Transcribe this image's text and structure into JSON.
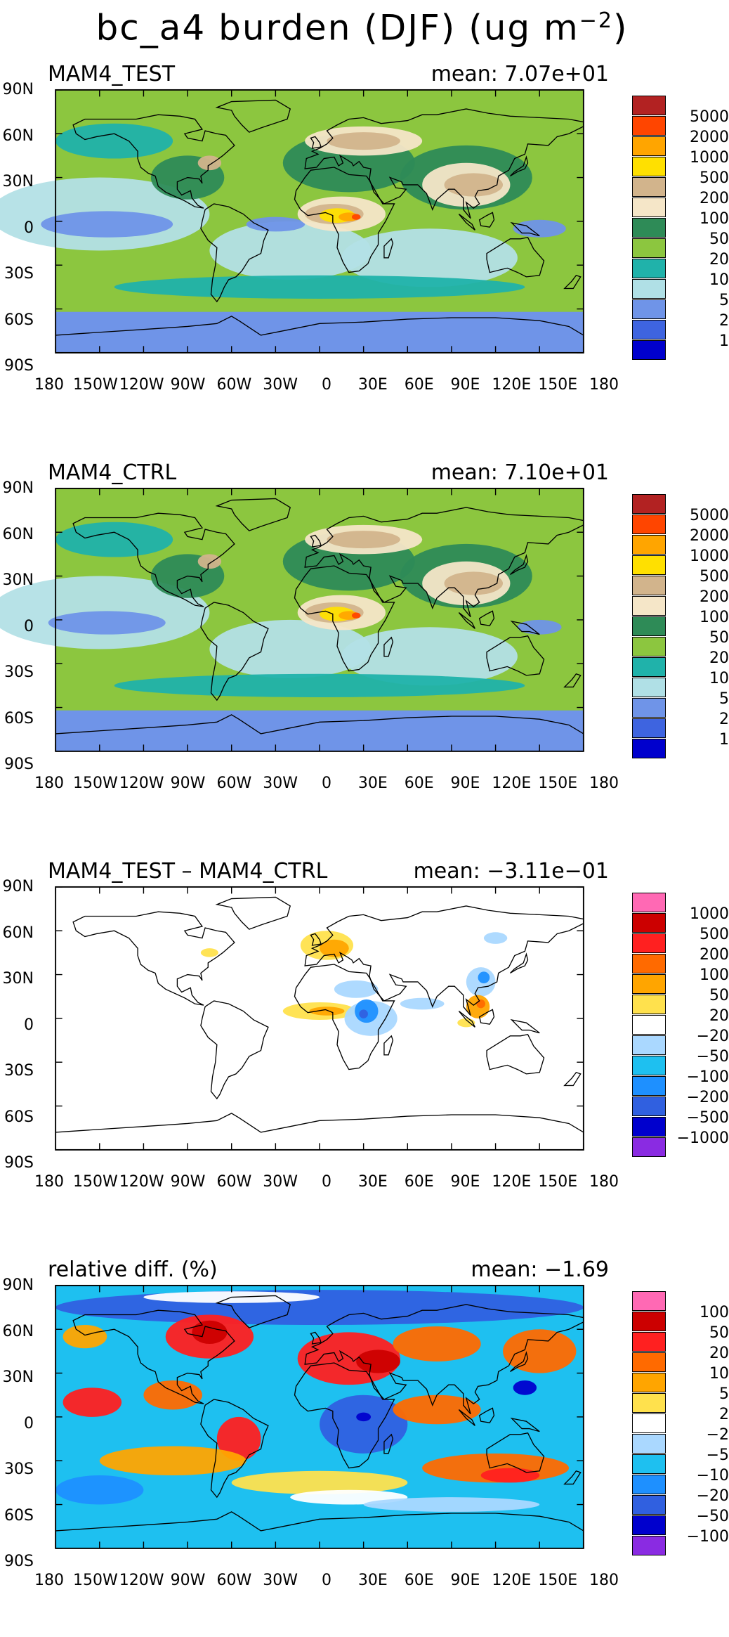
{
  "title": "bc_a4 burden (DJF) (ug m",
  "title_exponent": "−2",
  "title_close": ")",
  "x_labels": [
    "180",
    "150W",
    "120W",
    "90W",
    "60W",
    "30W",
    "0",
    "30E",
    "60E",
    "90E",
    "120E",
    "150E",
    "180"
  ],
  "y_labels": [
    "90N",
    "60N",
    "30N",
    "0",
    "30S",
    "60S",
    "90S"
  ],
  "panels": [
    {
      "id": "test",
      "title": "MAM4_TEST",
      "mean": "mean: 7.07e+01",
      "base_color": "#8cc63f",
      "ocean_color": "#b3e0e6",
      "land_color": "#8cc63f",
      "polar_color": "#6f94e8",
      "legend": {
        "colors": [
          "#b22222",
          "#ff4500",
          "#ffa500",
          "#ffe000",
          "#d2b48c",
          "#f5e6c8",
          "#2e8b57",
          "#8cc63f",
          "#20b2aa",
          "#b0e0e6",
          "#6f94e8",
          "#3e64e0",
          "#0000cd"
        ],
        "labels": [
          "5000",
          "2000",
          "1000",
          "500",
          "200",
          "100",
          "50",
          "20",
          "10",
          "5",
          "2",
          "1"
        ]
      }
    },
    {
      "id": "ctrl",
      "title": "MAM4_CTRL",
      "mean": "mean: 7.10e+01",
      "base_color": "#8cc63f",
      "ocean_color": "#b3e0e6",
      "land_color": "#8cc63f",
      "polar_color": "#6f94e8",
      "legend": {
        "colors": [
          "#b22222",
          "#ff4500",
          "#ffa500",
          "#ffe000",
          "#d2b48c",
          "#f5e6c8",
          "#2e8b57",
          "#8cc63f",
          "#20b2aa",
          "#b0e0e6",
          "#6f94e8",
          "#3e64e0",
          "#0000cd"
        ],
        "labels": [
          "5000",
          "2000",
          "1000",
          "500",
          "200",
          "100",
          "50",
          "20",
          "10",
          "5",
          "2",
          "1"
        ]
      }
    },
    {
      "id": "diff",
      "title": "MAM4_TEST – MAM4_CTRL",
      "mean": "mean: −3.11e−01",
      "base_color": "#ffffff",
      "legend": {
        "colors": [
          "#ff69b4",
          "#cc0000",
          "#ff2020",
          "#ff6a00",
          "#ffa500",
          "#ffe14d",
          "#ffffff",
          "#aad8ff",
          "#1ec0f0",
          "#1e90ff",
          "#3060e0",
          "#0000cd",
          "#8a2be2"
        ],
        "labels": [
          "1000",
          "500",
          "200",
          "100",
          "50",
          "20",
          "−20",
          "−50",
          "−100",
          "−200",
          "−500",
          "−1000"
        ]
      }
    },
    {
      "id": "rel",
      "title": "relative diff. (%)",
      "mean": "mean: −1.69",
      "base_color": "#1ec0f0",
      "legend": {
        "colors": [
          "#ff69b4",
          "#cc0000",
          "#ff2020",
          "#ff6a00",
          "#ffa500",
          "#ffe14d",
          "#ffffff",
          "#aad8ff",
          "#1ec0f0",
          "#1e90ff",
          "#3060e0",
          "#0000cd",
          "#8a2be2"
        ],
        "labels": [
          "100",
          "50",
          "20",
          "10",
          "5",
          "2",
          "−2",
          "−5",
          "−10",
          "−20",
          "−50",
          "−100"
        ]
      }
    }
  ]
}
